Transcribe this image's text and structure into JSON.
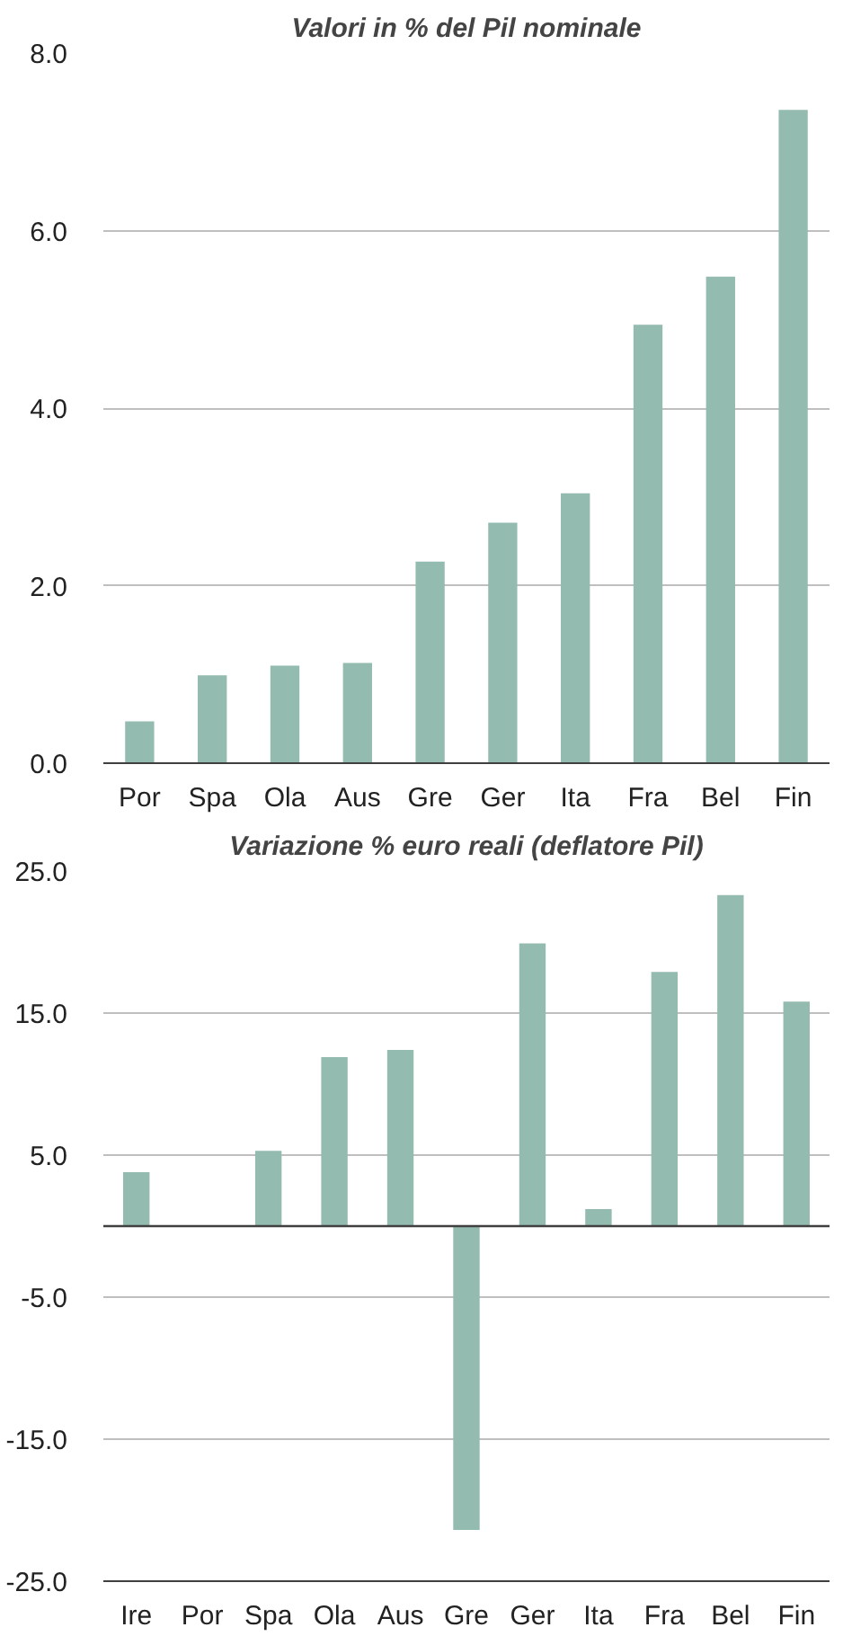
{
  "chart_data": [
    {
      "type": "bar",
      "title": "Valori in % del Pil nominale",
      "categories": [
        "Por",
        "Spa",
        "Ola",
        "Aus",
        "Gre",
        "Ger",
        "Ita",
        "Fra",
        "Bel",
        "Fin"
      ],
      "values": [
        0.47,
        0.99,
        1.1,
        1.13,
        2.27,
        2.71,
        3.04,
        4.94,
        5.48,
        7.36
      ],
      "color": "#93bbb0",
      "ylim": [
        0,
        8
      ],
      "yticks": [
        {
          "value": 0,
          "label": "0.0"
        },
        {
          "value": 2,
          "label": "2.0"
        },
        {
          "value": 4,
          "label": "4.0"
        },
        {
          "value": 6,
          "label": "6.0"
        },
        {
          "value": 8,
          "label": "8.0"
        }
      ],
      "grid": "y"
    },
    {
      "type": "bar",
      "title": "Variazione % euro reali (deflatore Pil)",
      "categories": [
        "Ire",
        "Por",
        "Spa",
        "Ola",
        "Aus",
        "Gre",
        "Ger",
        "Ita",
        "Fra",
        "Bel",
        "Fin"
      ],
      "values": [
        3.8,
        0,
        5.3,
        11.9,
        12.4,
        -21.4,
        19.9,
        1.2,
        17.9,
        23.3,
        15.8
      ],
      "color": "#93bbb0",
      "ylim": [
        -25,
        25
      ],
      "yticks": [
        {
          "value": -25,
          "label": "-25.0"
        },
        {
          "value": -15,
          "label": "-15.0"
        },
        {
          "value": -5,
          "label": "-5.0"
        },
        {
          "value": 5,
          "label": "5.0"
        },
        {
          "value": 15,
          "label": "15.0"
        },
        {
          "value": 25,
          "label": "25.0"
        }
      ],
      "grid": "y",
      "ref_lines": [
        {
          "axis": "y",
          "value": 0,
          "color": "#404040"
        }
      ]
    }
  ]
}
